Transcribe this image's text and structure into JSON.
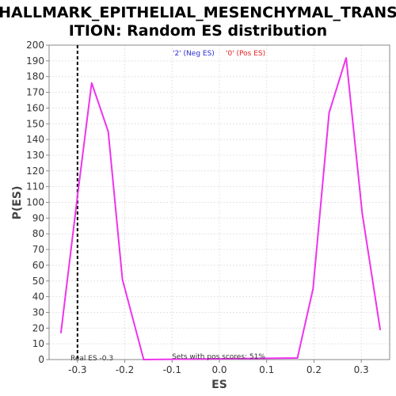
{
  "chart_data": {
    "type": "line",
    "title_lines": [
      "HALLMARK_EPITHELIAL_MESENCHYMAL_TRANS",
      "ITION: Random ES distribution"
    ],
    "xlabel": "ES",
    "ylabel": "P(ES)",
    "xlim": [
      -0.36,
      0.36
    ],
    "ylim": [
      0,
      200
    ],
    "x_ticks": [
      -0.3,
      -0.2,
      -0.1,
      0.0,
      0.1,
      0.2,
      0.3
    ],
    "x_tick_labels": [
      "-0.3",
      "-0.2",
      "-0.1",
      "0.0",
      "0.1",
      "0.2",
      "0.3"
    ],
    "y_ticks": [
      0,
      10,
      20,
      30,
      40,
      50,
      60,
      70,
      80,
      90,
      100,
      110,
      120,
      130,
      140,
      150,
      160,
      170,
      180,
      190,
      200
    ],
    "grid": true,
    "legend_placement": "top-center",
    "legend": [
      {
        "label": "'2' (Neg ES)",
        "color": "#2a2ad6"
      },
      {
        "label": "'0' (Pos ES)",
        "color": "#e01e1e"
      }
    ],
    "series": [
      {
        "color": "#ee33ee",
        "x": [
          -0.335,
          -0.3,
          -0.27,
          -0.235,
          -0.205,
          -0.16,
          0.165,
          0.198,
          0.232,
          0.268,
          0.302,
          0.34
        ],
        "y": [
          17,
          104,
          176,
          145,
          51,
          0,
          1,
          45,
          157,
          192,
          93,
          19
        ]
      }
    ],
    "real_es": {
      "value": -0.3,
      "label": "Real ES -0.3",
      "style": "dashed"
    },
    "annotation": "Sets with pos scores: 51%"
  }
}
